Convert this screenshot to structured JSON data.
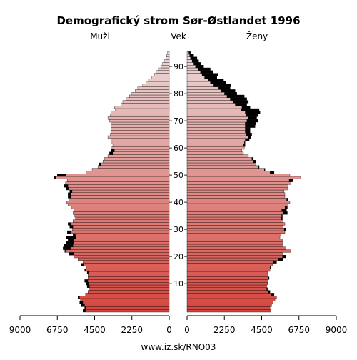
{
  "chart_data": {
    "type": "bar",
    "title": "Demografický strom Sør-Østlandet 1996",
    "left_label": "Muži",
    "center_label": "Vek",
    "right_label": "Ženy",
    "footer": "www.iz.sk/RNO03",
    "x_axis_range": [
      0,
      9000
    ],
    "x_ticks": [
      9000,
      6750,
      4500,
      2250,
      0
    ],
    "x_ticks_right": [
      0,
      2250,
      4500,
      6750,
      9000
    ],
    "age_range": [
      0,
      95
    ],
    "age_ticks": [
      10,
      20,
      30,
      40,
      50,
      60,
      70,
      80,
      90
    ],
    "colors": {
      "male_young": "#d6463f",
      "male_old": "#ead9d9",
      "female_young": "#d6463f",
      "female_old": "#ead9d9",
      "excess": "#000000"
    },
    "series": [
      {
        "name": "Muži",
        "ages": [
          0,
          1,
          2,
          3,
          4,
          5,
          6,
          7,
          8,
          9,
          10,
          11,
          12,
          13,
          14,
          15,
          16,
          17,
          18,
          19,
          20,
          21,
          22,
          23,
          24,
          25,
          26,
          27,
          28,
          29,
          30,
          31,
          32,
          33,
          34,
          35,
          36,
          37,
          38,
          39,
          40,
          41,
          42,
          43,
          44,
          45,
          46,
          47,
          48,
          49,
          50,
          51,
          52,
          53,
          54,
          55,
          56,
          57,
          58,
          59,
          60,
          61,
          62,
          63,
          64,
          65,
          66,
          67,
          68,
          69,
          70,
          71,
          72,
          73,
          74,
          75,
          76,
          77,
          78,
          79,
          80,
          81,
          82,
          83,
          84,
          85,
          86,
          87,
          88,
          89,
          90,
          91,
          92,
          93,
          94,
          95
        ],
        "values": [
          5200,
          5100,
          5300,
          5400,
          5350,
          5500,
          5050,
          4900,
          4800,
          4950,
          5000,
          5100,
          4900,
          4900,
          4950,
          5100,
          5000,
          5300,
          5200,
          5500,
          5750,
          6050,
          6300,
          6400,
          6350,
          6200,
          6100,
          6200,
          5800,
          6150,
          5850,
          6000,
          6100,
          5800,
          5650,
          5700,
          5800,
          5700,
          5900,
          6100,
          6200,
          6000,
          6100,
          6100,
          6000,
          6200,
          6350,
          6250,
          6150,
          6950,
          6750,
          5000,
          4650,
          4300,
          4250,
          4000,
          3900,
          3700,
          3600,
          3500,
          3450,
          3400,
          3450,
          3500,
          3700,
          3550,
          3500,
          3500,
          3500,
          3500,
          3600,
          3700,
          3550,
          3500,
          3250,
          3300,
          2900,
          2800,
          2600,
          2400,
          2250,
          2050,
          1900,
          1600,
          1400,
          1250,
          1050,
          900,
          800,
          650,
          500,
          400,
          300,
          200,
          150,
          100
        ]
      },
      {
        "name": "Ženy",
        "ages": [
          0,
          1,
          2,
          3,
          4,
          5,
          6,
          7,
          8,
          9,
          10,
          11,
          12,
          13,
          14,
          15,
          16,
          17,
          18,
          19,
          20,
          21,
          22,
          23,
          24,
          25,
          26,
          27,
          28,
          29,
          30,
          31,
          32,
          33,
          34,
          35,
          36,
          37,
          38,
          39,
          40,
          41,
          42,
          43,
          44,
          45,
          46,
          47,
          48,
          49,
          50,
          51,
          52,
          53,
          54,
          55,
          56,
          57,
          58,
          59,
          60,
          61,
          62,
          63,
          64,
          65,
          66,
          67,
          68,
          69,
          70,
          71,
          72,
          73,
          74,
          75,
          76,
          77,
          78,
          79,
          80,
          81,
          82,
          83,
          84,
          85,
          86,
          87,
          88,
          89,
          90,
          91,
          92,
          93,
          94,
          95
        ],
        "values": [
          5050,
          5000,
          5100,
          5200,
          5300,
          5400,
          5250,
          5000,
          4850,
          4800,
          4850,
          4900,
          4950,
          4900,
          4850,
          5000,
          5050,
          5150,
          5400,
          5800,
          5950,
          5750,
          6250,
          5950,
          5800,
          5750,
          5750,
          5600,
          5650,
          5900,
          5950,
          5800,
          5900,
          5800,
          5750,
          5750,
          6050,
          6000,
          6050,
          6100,
          6200,
          6100,
          5900,
          5900,
          5850,
          6050,
          6100,
          6250,
          6400,
          6850,
          6200,
          5250,
          4700,
          4350,
          4100,
          4150,
          4000,
          3700,
          3400,
          3300,
          3450,
          3500,
          3500,
          3750,
          3850,
          3900,
          3800,
          3800,
          4100,
          4150,
          4300,
          4200,
          4300,
          4400,
          4350,
          3800,
          3600,
          3700,
          3600,
          3450,
          3000,
          2900,
          2600,
          2650,
          2350,
          2200,
          1800,
          1850,
          1550,
          1400,
          1000,
          850,
          700,
          600,
          400,
          200
        ]
      }
    ]
  }
}
